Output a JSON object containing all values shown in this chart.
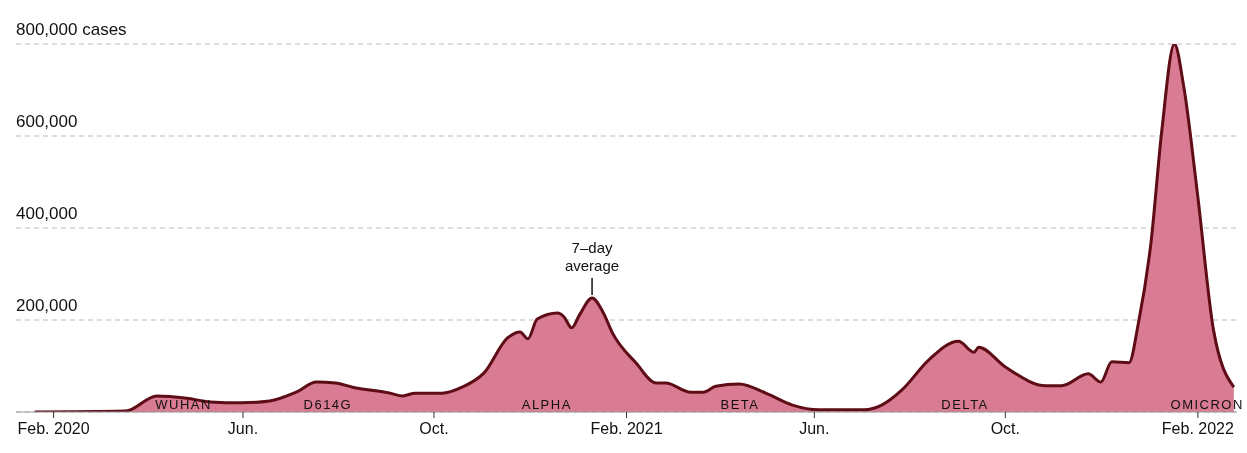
{
  "chart_data": {
    "type": "area",
    "x": [
      "2020-01-20",
      "2020-03-18",
      "2020-04-07",
      "2020-04-26",
      "2020-05-11",
      "2020-05-31",
      "2020-06-18",
      "2020-07-05",
      "2020-07-18",
      "2020-07-30",
      "2020-08-10",
      "2020-09-03",
      "2020-09-11",
      "2020-09-19",
      "2020-10-06",
      "2020-10-19",
      "2020-11-02",
      "2020-11-17",
      "2020-11-25",
      "2020-11-30",
      "2020-12-06",
      "2020-12-19",
      "2020-12-23",
      "2020-12-28",
      "2021-01-02",
      "2021-01-10",
      "2021-01-17",
      "2021-01-23",
      "2021-02-07",
      "2021-02-20",
      "2021-02-26",
      "2021-03-14",
      "2021-03-22",
      "2021-03-30",
      "2021-04-14",
      "2021-05-01",
      "2021-05-18",
      "2021-06-04",
      "2021-07-03",
      "2021-07-14",
      "2021-07-27",
      "2021-08-13",
      "2021-09-01",
      "2021-09-11",
      "2021-09-14",
      "2021-10-01",
      "2021-10-27",
      "2021-11-06",
      "2021-11-23",
      "2021-12-01",
      "2021-12-08",
      "2021-12-19",
      "2021-12-25",
      "2022-01-02",
      "2022-01-09",
      "2022-01-17",
      "2022-01-23",
      "2022-02-01",
      "2022-02-11",
      "2022-02-24"
    ],
    "series": [
      {
        "color": "#d97b93",
        "values": [
          0,
          2000,
          35000,
          30000,
          22000,
          20000,
          24000,
          43000,
          65000,
          63000,
          54000,
          41000,
          35000,
          41000,
          41000,
          54000,
          85000,
          161000,
          174000,
          159000,
          202000,
          215000,
          207000,
          183000,
          211000,
          248000,
          217000,
          172000,
          107000,
          63000,
          63000,
          43000,
          43000,
          56000,
          61000,
          41000,
          15000,
          5000,
          5000,
          15000,
          48000,
          113000,
          154000,
          130000,
          141000,
          98000,
          57000,
          57000,
          83000,
          65000,
          109000,
          107000,
          193000,
          367000,
          613000,
          800000,
          707000,
          467000,
          178000,
          54000
        ]
      }
    ],
    "xlim": [
      "2020-01-08",
      "2022-02-26"
    ],
    "xticks": [
      {
        "value": "2020-02-01",
        "label": "Feb. 2020"
      },
      {
        "value": "2020-06-01",
        "label": "Jun."
      },
      {
        "value": "2020-10-01",
        "label": "Oct."
      },
      {
        "value": "2021-02-01",
        "label": "Feb. 2021"
      },
      {
        "value": "2021-06-01",
        "label": "Jun."
      },
      {
        "value": "2021-10-01",
        "label": "Oct."
      },
      {
        "value": "2022-02-01",
        "label": "Feb. 2022"
      }
    ],
    "ylim": [
      0,
      800000
    ],
    "yticks": [
      {
        "value": 200000,
        "label": "200,000"
      },
      {
        "value": 400000,
        "label": "400,000"
      },
      {
        "value": 600000,
        "label": "600,000"
      },
      {
        "value": 800000,
        "label": "800,000 cases"
      }
    ],
    "grid": "y",
    "marker": "none",
    "line_style": "solid",
    "annotations": [
      {
        "text": "7–day average",
        "x": "2021-01-10",
        "y": 248000
      },
      "WUHAN",
      "D614G",
      "ALPHA",
      "BETA",
      "DELTA",
      "OMICRON"
    ]
  }
}
